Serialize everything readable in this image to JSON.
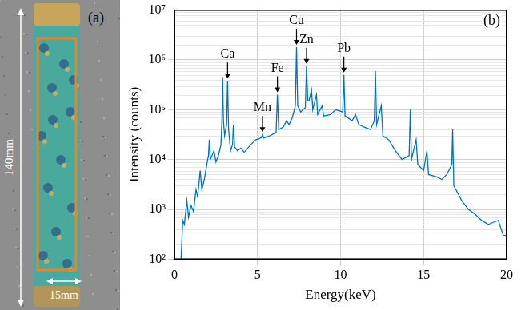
{
  "panel_a": {
    "label": "(a)",
    "height_label": "140mm",
    "width_label": "15mm"
  },
  "chart_data": {
    "type": "line",
    "panel_label": "(b)",
    "xlabel": "Energy(keV)",
    "ylabel": "Intensity (counts)",
    "color": "#0072bd",
    "x": [
      0.4,
      0.5,
      0.6,
      0.75,
      0.85,
      1.0,
      1.15,
      1.3,
      1.4,
      1.55,
      1.65,
      1.8,
      1.95,
      2.05,
      2.1,
      2.16,
      2.38,
      2.5,
      2.65,
      2.8,
      2.86,
      2.9,
      2.95,
      3.02,
      3.14,
      3.2,
      3.26,
      3.38,
      3.5,
      3.55,
      3.62,
      3.8,
      4.0,
      4.2,
      4.6,
      4.9,
      5.1,
      5.25,
      5.3,
      5.36,
      5.75,
      6.12,
      6.2,
      6.28,
      6.55,
      6.75,
      6.9,
      7.1,
      7.28,
      7.35,
      7.42,
      7.6,
      7.88,
      7.95,
      8.03,
      8.1,
      8.25,
      8.33,
      8.55,
      8.62,
      8.9,
      8.98,
      9.4,
      9.7,
      10.13,
      10.2,
      10.27,
      10.7,
      10.9,
      11.1,
      11.4,
      11.8,
      12.03,
      12.1,
      12.17,
      12.45,
      12.55,
      12.9,
      13.3,
      13.7,
      14.13,
      14.2,
      14.27,
      14.55,
      14.65,
      15.0,
      15.2,
      15.3,
      15.8,
      16.1,
      16.4,
      16.7,
      16.75,
      16.82,
      17.3,
      17.7,
      18.1,
      18.5,
      18.9,
      19.2,
      19.5,
      19.8,
      20.0
    ],
    "values": [
      100,
      600,
      500,
      1500,
      700,
      1200,
      900,
      2500,
      1800,
      6000,
      2500,
      4000,
      8000,
      12000,
      25000,
      10000,
      15000,
      9000,
      12000,
      20000,
      60000,
      450000,
      60000,
      30000,
      50000,
      380000,
      40000,
      15000,
      20000,
      50000,
      18000,
      15000,
      17000,
      14000,
      20000,
      25000,
      26000,
      28000,
      32000,
      27000,
      30000,
      35000,
      200000,
      40000,
      45000,
      60000,
      50000,
      70000,
      120000,
      1800000,
      120000,
      90000,
      110000,
      750000,
      150000,
      150000,
      250000,
      100000,
      200000,
      80000,
      120000,
      75000,
      80000,
      100000,
      90000,
      500000,
      75000,
      60000,
      80000,
      50000,
      45000,
      40000,
      60000,
      600000,
      50000,
      120000,
      30000,
      25000,
      15000,
      10000,
      12000,
      100000,
      10000,
      25000,
      8000,
      6000,
      15000,
      5000,
      4500,
      4000,
      5000,
      8000,
      40000,
      3000,
      1500,
      1000,
      800,
      600,
      500,
      550,
      600,
      300,
      300
    ],
    "xlim": [
      0,
      20
    ],
    "xticks": [
      0,
      5,
      10,
      15,
      20
    ],
    "ylim": [
      100,
      10000000
    ],
    "yticks": [
      {
        "value": 100,
        "label": "10²"
      },
      {
        "value": 1000,
        "label": "10³"
      },
      {
        "value": 10000,
        "label": "10⁴"
      },
      {
        "value": 100000,
        "label": "10⁵"
      },
      {
        "value": 1000000,
        "label": "10⁶"
      },
      {
        "value": 10000000,
        "label": "10⁷"
      }
    ],
    "log": "y",
    "grid": true,
    "annotations": [
      {
        "text": "Ca",
        "x": 3.2,
        "y": 380000
      },
      {
        "text": "Mn",
        "x": 5.3,
        "y": 32000
      },
      {
        "text": "Fe",
        "x": 6.2,
        "y": 200000
      },
      {
        "text": "Cu",
        "x": 7.35,
        "y": 1800000
      },
      {
        "text": "Zn",
        "x": 7.95,
        "y": 750000
      },
      {
        "text": "Pb",
        "x": 10.2,
        "y": 500000
      }
    ]
  }
}
